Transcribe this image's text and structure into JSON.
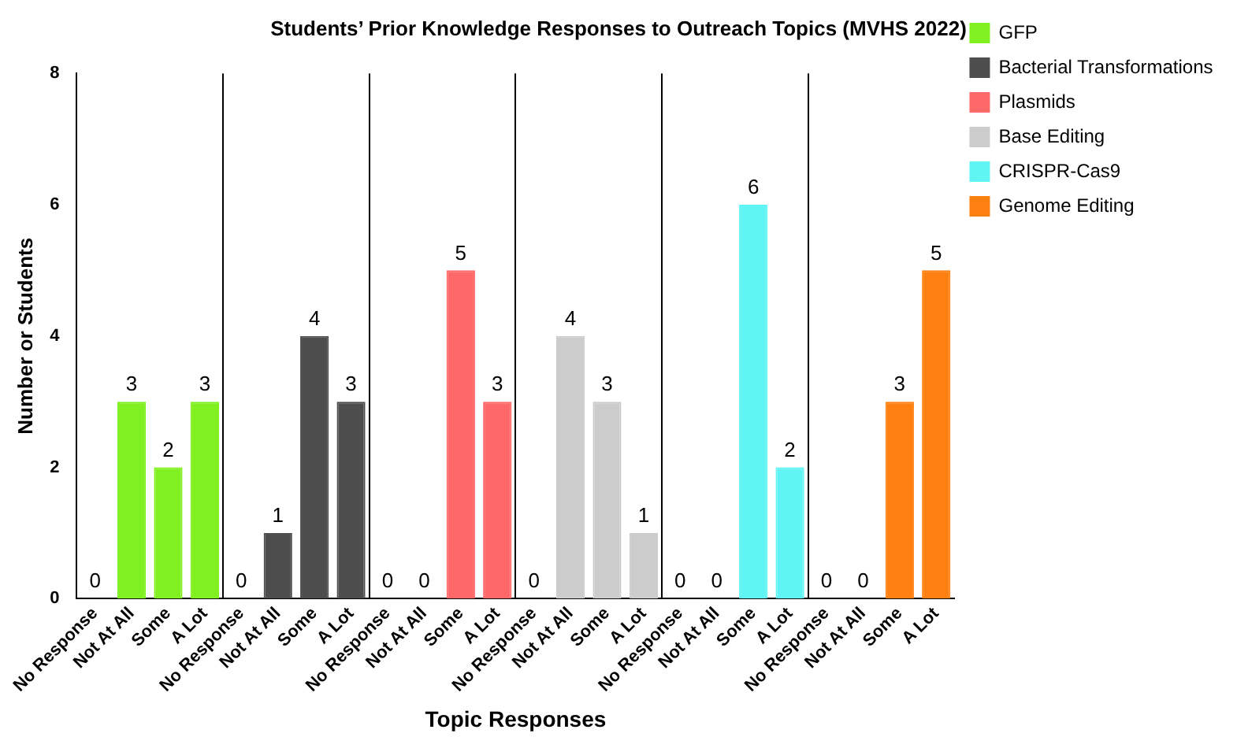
{
  "chart_data": {
    "type": "bar",
    "title": "Students’ Prior Knowledge Responses to Outreach Topics (MVHS 2022)",
    "xlabel": "Topic Responses",
    "ylabel": "Number or Students",
    "categories": [
      "No Response",
      "Not At All",
      "Some",
      "A Lot",
      "No Response",
      "Not At All",
      "Some",
      "A Lot",
      "No Response",
      "Not At All",
      "Some",
      "A Lot",
      "No Response",
      "Not At All",
      "Some",
      "A Lot",
      "No Response",
      "Not At All",
      "Some",
      "A Lot",
      "No Response",
      "Not At All",
      "Some",
      "A Lot"
    ],
    "series": [
      {
        "name": "GFP",
        "color": "#80f020",
        "values": [
          0,
          3,
          2,
          3,
          null,
          null,
          null,
          null,
          null,
          null,
          null,
          null,
          null,
          null,
          null,
          null,
          null,
          null,
          null,
          null,
          null,
          null,
          null,
          null
        ]
      },
      {
        "name": "Bacterial Transformations",
        "color": "#4d4d4d",
        "values": [
          null,
          null,
          null,
          null,
          0,
          1,
          4,
          3,
          null,
          null,
          null,
          null,
          null,
          null,
          null,
          null,
          null,
          null,
          null,
          null,
          null,
          null,
          null,
          null
        ]
      },
      {
        "name": "Plasmids",
        "color": "#ff6868",
        "values": [
          null,
          null,
          null,
          null,
          null,
          null,
          null,
          null,
          0,
          0,
          5,
          3,
          null,
          null,
          null,
          null,
          null,
          null,
          null,
          null,
          null,
          null,
          null,
          null
        ]
      },
      {
        "name": "Base Editing",
        "color": "#cccccc",
        "values": [
          null,
          null,
          null,
          null,
          null,
          null,
          null,
          null,
          null,
          null,
          null,
          null,
          0,
          4,
          3,
          1,
          null,
          null,
          null,
          null,
          null,
          null,
          null,
          null
        ]
      },
      {
        "name": "CRISPR-Cas9",
        "color": "#60f4f4",
        "values": [
          null,
          null,
          null,
          null,
          null,
          null,
          null,
          null,
          null,
          null,
          null,
          null,
          null,
          null,
          null,
          null,
          0,
          0,
          6,
          2,
          null,
          null,
          null,
          null
        ]
      },
      {
        "name": "Genome Editing",
        "color": "#ff8010",
        "values": [
          null,
          null,
          null,
          null,
          null,
          null,
          null,
          null,
          null,
          null,
          null,
          null,
          null,
          null,
          null,
          null,
          null,
          null,
          null,
          null,
          0,
          0,
          3,
          5
        ]
      }
    ],
    "ylim": [
      0,
      8
    ],
    "yticks": [
      0,
      2,
      4,
      6,
      8
    ],
    "grid": false,
    "legend": "top right",
    "data_labels": true
  }
}
